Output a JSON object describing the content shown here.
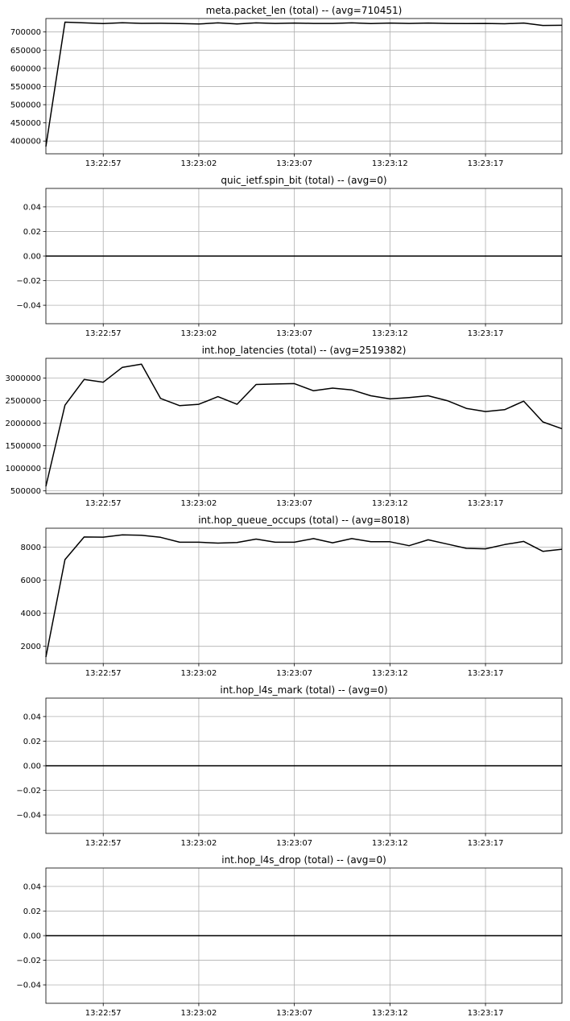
{
  "chart_data": [
    {
      "type": "line",
      "title": "meta.packet_len (total) -- (avg=710451)",
      "ylim": [
        365000,
        737000
      ],
      "yticks": [
        400000,
        450000,
        500000,
        550000,
        600000,
        650000,
        700000
      ],
      "ytick_labels": [
        "400000",
        "450000",
        "500000",
        "550000",
        "600000",
        "650000",
        "700000"
      ],
      "values": [
        385000,
        727000,
        725000,
        723000,
        725500,
        723800,
        724000,
        723000,
        722000,
        725000,
        722000,
        725000,
        723500,
        724700,
        723500,
        723500,
        725000,
        723000,
        724700,
        723500,
        724700,
        723500,
        723000,
        723500,
        722500,
        724700,
        718000,
        718400
      ]
    },
    {
      "type": "line",
      "title": "quic_ietf.spin_bit (total) -- (avg=0)",
      "ylim": [
        -0.055,
        0.055
      ],
      "yticks": [
        -0.04,
        -0.02,
        0.0,
        0.02,
        0.04
      ],
      "ytick_labels": [
        "−0.04",
        "−0.02",
        "0.00",
        "0.02",
        "0.04"
      ],
      "values": [
        0,
        0,
        0,
        0,
        0,
        0,
        0,
        0,
        0,
        0,
        0,
        0,
        0,
        0,
        0,
        0,
        0,
        0,
        0,
        0,
        0,
        0,
        0,
        0,
        0,
        0,
        0,
        0
      ]
    },
    {
      "type": "line",
      "title": "int.hop_latencies (total) -- (avg=2519382)",
      "ylim": [
        440000,
        3440000
      ],
      "yticks": [
        500000,
        1000000,
        1500000,
        2000000,
        2500000,
        3000000
      ],
      "ytick_labels": [
        "500000",
        "1000000",
        "1500000",
        "2000000",
        "2500000",
        "3000000"
      ],
      "values": [
        600000,
        2400000,
        2970000,
        2910000,
        3240000,
        3310000,
        2550000,
        2390000,
        2420000,
        2590000,
        2420000,
        2860000,
        2870000,
        2880000,
        2720000,
        2780000,
        2740000,
        2610000,
        2540000,
        2570000,
        2610000,
        2500000,
        2330000,
        2260000,
        2300000,
        2490000,
        2030000,
        1880000
      ]
    },
    {
      "type": "line",
      "title": "int.hop_queue_occups (total) -- (avg=8018)",
      "ylim": [
        960,
        9150
      ],
      "yticks": [
        2000,
        4000,
        6000,
        8000
      ],
      "ytick_labels": [
        "2000",
        "4000",
        "6000",
        "8000"
      ],
      "values": [
        1350,
        7250,
        8620,
        8610,
        8750,
        8720,
        8600,
        8300,
        8300,
        8250,
        8280,
        8490,
        8300,
        8300,
        8520,
        8270,
        8520,
        8330,
        8330,
        8090,
        8450,
        8190,
        7930,
        7900,
        8160,
        8350,
        7750,
        7880
      ]
    },
    {
      "type": "line",
      "title": "int.hop_l4s_mark (total) -- (avg=0)",
      "ylim": [
        -0.055,
        0.055
      ],
      "yticks": [
        -0.04,
        -0.02,
        0.0,
        0.02,
        0.04
      ],
      "ytick_labels": [
        "−0.04",
        "−0.02",
        "0.00",
        "0.02",
        "0.04"
      ],
      "values": [
        0,
        0,
        0,
        0,
        0,
        0,
        0,
        0,
        0,
        0,
        0,
        0,
        0,
        0,
        0,
        0,
        0,
        0,
        0,
        0,
        0,
        0,
        0,
        0,
        0,
        0,
        0,
        0
      ]
    },
    {
      "type": "line",
      "title": "int.hop_l4s_drop (total) -- (avg=0)",
      "ylim": [
        -0.055,
        0.055
      ],
      "yticks": [
        -0.04,
        -0.02,
        0.0,
        0.02,
        0.04
      ],
      "ytick_labels": [
        "−0.04",
        "−0.02",
        "0.00",
        "0.02",
        "0.04"
      ],
      "values": [
        0,
        0,
        0,
        0,
        0,
        0,
        0,
        0,
        0,
        0,
        0,
        0,
        0,
        0,
        0,
        0,
        0,
        0,
        0,
        0,
        0,
        0,
        0,
        0,
        0,
        0,
        0,
        0
      ]
    }
  ],
  "x": [
    "13:22:54",
    "13:22:55",
    "13:22:56",
    "13:22:57",
    "13:22:58",
    "13:22:59",
    "13:23:00",
    "13:23:01",
    "13:23:02",
    "13:23:03",
    "13:23:04",
    "13:23:05",
    "13:23:06",
    "13:23:07",
    "13:23:08",
    "13:23:09",
    "13:23:10",
    "13:23:11",
    "13:23:12",
    "13:23:13",
    "13:23:14",
    "13:23:15",
    "13:23:16",
    "13:23:17",
    "13:23:18",
    "13:23:19",
    "13:23:20",
    "13:23:21"
  ],
  "xticks": [
    "13:22:57",
    "13:23:02",
    "13:23:07",
    "13:23:12",
    "13:23:17"
  ],
  "grid": true
}
